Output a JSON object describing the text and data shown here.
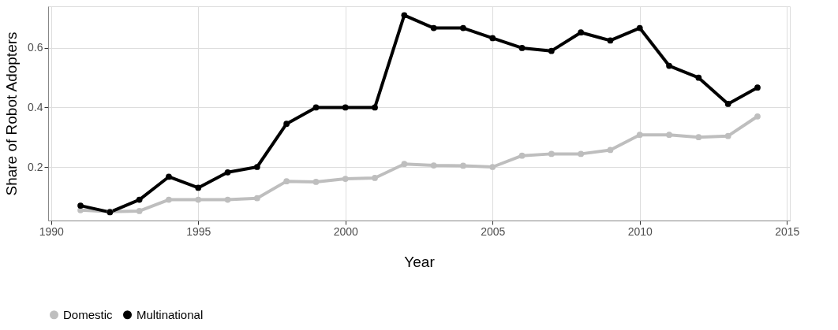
{
  "chart_data": {
    "type": "line",
    "xlabel": "Year",
    "ylabel": "Share of Robot Adopters",
    "x": [
      1991,
      1992,
      1993,
      1994,
      1995,
      1996,
      1997,
      1998,
      1999,
      2000,
      2001,
      2002,
      2003,
      2004,
      2005,
      2006,
      2007,
      2008,
      2009,
      2010,
      2011,
      2012,
      2013,
      2014
    ],
    "series": [
      {
        "name": "Domestic",
        "color": "#bebebe",
        "values": [
          0.055,
          0.05,
          0.052,
          0.09,
          0.09,
          0.09,
          0.095,
          0.152,
          0.15,
          0.16,
          0.163,
          0.21,
          0.205,
          0.204,
          0.2,
          0.238,
          0.244,
          0.244,
          0.257,
          0.308,
          0.308,
          0.3,
          0.304,
          0.37
        ]
      },
      {
        "name": "Multinational",
        "color": "#000000",
        "values": [
          0.07,
          0.048,
          0.09,
          0.167,
          0.13,
          0.182,
          0.2,
          0.345,
          0.4,
          0.4,
          0.4,
          0.71,
          0.667,
          0.667,
          0.633,
          0.6,
          0.59,
          0.652,
          0.625,
          0.667,
          0.54,
          0.5,
          0.412,
          0.467
        ]
      }
    ],
    "xlim": [
      1989.9,
      2015.1
    ],
    "xticks": [
      1990,
      1995,
      2000,
      2005,
      2010,
      2015
    ],
    "ylim": [
      0.02,
      0.74
    ],
    "yticks": [
      0.2,
      0.4,
      0.6
    ],
    "grid": true,
    "legend": "bottom",
    "marker": "circle",
    "line_style": "solid"
  }
}
